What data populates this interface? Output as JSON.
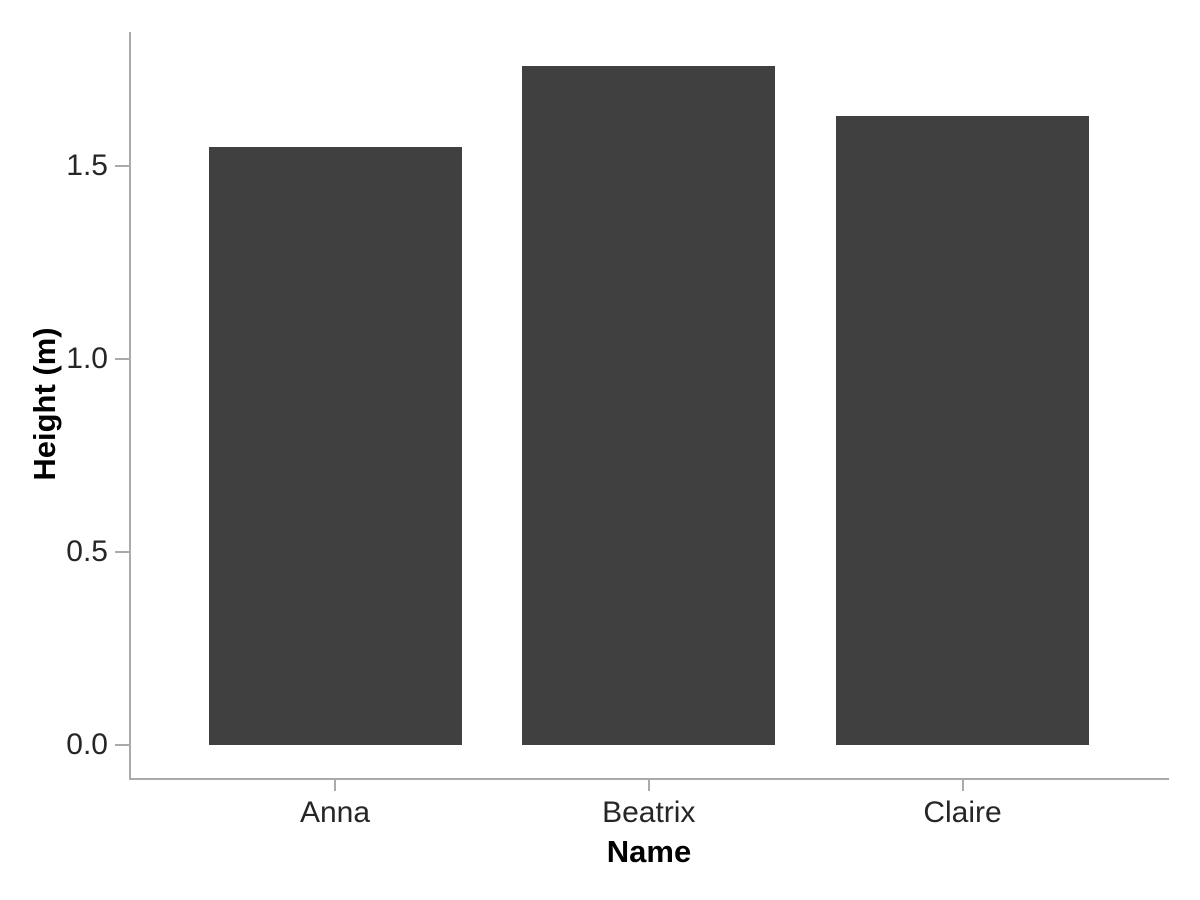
{
  "chart_data": {
    "type": "bar",
    "title": "",
    "xlabel": "Name",
    "ylabel": "Height (m)",
    "categories": [
      "Anna",
      "Beatrix",
      "Claire"
    ],
    "values": [
      1.55,
      1.76,
      1.63
    ],
    "series_unit": "m",
    "ytick_values": [
      0,
      0.5,
      1.0,
      1.5
    ],
    "ytick_labels": [
      "0.0",
      "0.5",
      "1.0",
      "1.5"
    ],
    "ylim": [
      0,
      1.76
    ],
    "y_expansion": 0.05,
    "grid": false,
    "legend": false,
    "colors": {
      "bar": "#404040",
      "axis": "#aaaaaa",
      "tick_label": "#262626",
      "title": "#000000",
      "background": "#ffffff"
    }
  }
}
